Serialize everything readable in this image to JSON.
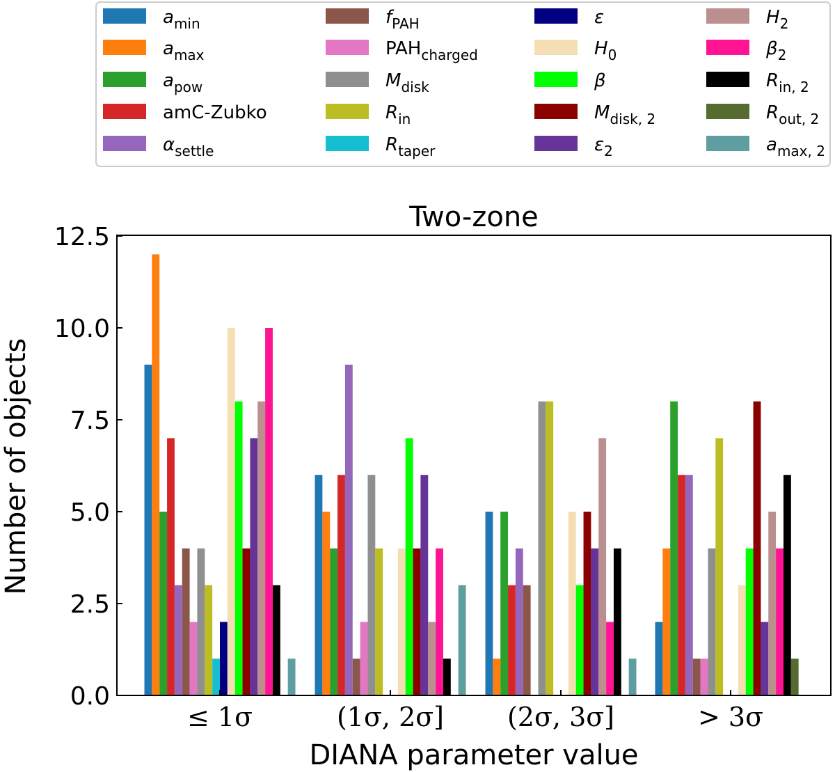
{
  "chart_data": {
    "type": "bar",
    "title": "Two-zone",
    "xlabel": "DIANA parameter value",
    "ylabel": "Number of objects",
    "ylim": [
      0,
      12.5
    ],
    "yticks": [
      "0.0",
      "2.5",
      "5.0",
      "7.5",
      "10.0",
      "12.5"
    ],
    "categories": [
      "≤ 1σ",
      "(1σ, 2σ]",
      "(2σ, 3σ]",
      "> 3σ"
    ],
    "series": [
      {
        "key": "a_min",
        "base": "a",
        "sub": "min",
        "italic": true,
        "color": "#1f77b4",
        "values": [
          9,
          6,
          5,
          2
        ]
      },
      {
        "key": "a_max",
        "base": "a",
        "sub": "max",
        "italic": true,
        "color": "#ff7f0e",
        "values": [
          12,
          5,
          1,
          4
        ]
      },
      {
        "key": "a_pow",
        "base": "a",
        "sub": "pow",
        "italic": true,
        "color": "#2ca02c",
        "values": [
          5,
          4,
          5,
          8
        ]
      },
      {
        "key": "amC-Zubko",
        "base": "amC-Zubko",
        "sub": "",
        "italic": false,
        "color": "#d62728",
        "values": [
          7,
          6,
          3,
          6
        ]
      },
      {
        "key": "alpha_settle",
        "base": "α",
        "sub": "settle",
        "italic": true,
        "color": "#9467bd",
        "values": [
          3,
          9,
          4,
          6
        ]
      },
      {
        "key": "f_PAH",
        "base": "f",
        "sub": "PAH",
        "italic": true,
        "color": "#8c564b",
        "values": [
          4,
          1,
          3,
          1
        ]
      },
      {
        "key": "PAH_charged",
        "base": "PAH",
        "sub": "charged",
        "italic": false,
        "color": "#e377c2",
        "values": [
          2,
          2,
          0,
          1
        ]
      },
      {
        "key": "M_disk",
        "base": "M",
        "sub": "disk",
        "italic": true,
        "color": "#8f8f8f",
        "values": [
          4,
          6,
          8,
          4
        ]
      },
      {
        "key": "R_in",
        "base": "R",
        "sub": "in",
        "italic": true,
        "color": "#bcbd22",
        "values": [
          3,
          4,
          8,
          7
        ]
      },
      {
        "key": "R_taper",
        "base": "R",
        "sub": "taper",
        "italic": true,
        "color": "#17becf",
        "values": [
          1,
          0,
          0,
          0
        ]
      },
      {
        "key": "epsilon",
        "base": "ε",
        "sub": "",
        "italic": true,
        "color": "#000080",
        "values": [
          2,
          0,
          0,
          0
        ]
      },
      {
        "key": "H_0",
        "base": "H",
        "sub": "0",
        "italic": true,
        "color": "#f5deb3",
        "values": [
          10,
          4,
          5,
          3
        ]
      },
      {
        "key": "beta",
        "base": "β",
        "sub": "",
        "italic": true,
        "color": "#00ff00",
        "values": [
          8,
          7,
          3,
          4
        ]
      },
      {
        "key": "M_disk_2",
        "base": "M",
        "sub": "disk, 2",
        "italic": true,
        "color": "#8b0000",
        "values": [
          4,
          4,
          5,
          8
        ]
      },
      {
        "key": "epsilon_2",
        "base": "ε",
        "sub": "2",
        "italic": true,
        "color": "#663399",
        "values": [
          7,
          6,
          4,
          2
        ]
      },
      {
        "key": "H_2",
        "base": "H",
        "sub": "2",
        "italic": true,
        "color": "#bc8f8f",
        "values": [
          8,
          2,
          7,
          5
        ]
      },
      {
        "key": "beta_2",
        "base": "β",
        "sub": "2",
        "italic": true,
        "color": "#ff1493",
        "values": [
          10,
          4,
          2,
          4
        ]
      },
      {
        "key": "R_in_2",
        "base": "R",
        "sub": "in, 2",
        "italic": true,
        "color": "#000000",
        "values": [
          3,
          1,
          4,
          6
        ]
      },
      {
        "key": "R_out_2",
        "base": "R",
        "sub": "out, 2",
        "italic": true,
        "color": "#556b2f",
        "values": [
          0,
          0,
          0,
          1
        ]
      },
      {
        "key": "a_max_2",
        "base": "a",
        "sub": "max, 2",
        "italic": true,
        "color": "#5f9ea0",
        "values": [
          1,
          3,
          1,
          0
        ]
      }
    ],
    "legend": {
      "placement": "top",
      "columns": 4
    },
    "grid": false
  }
}
